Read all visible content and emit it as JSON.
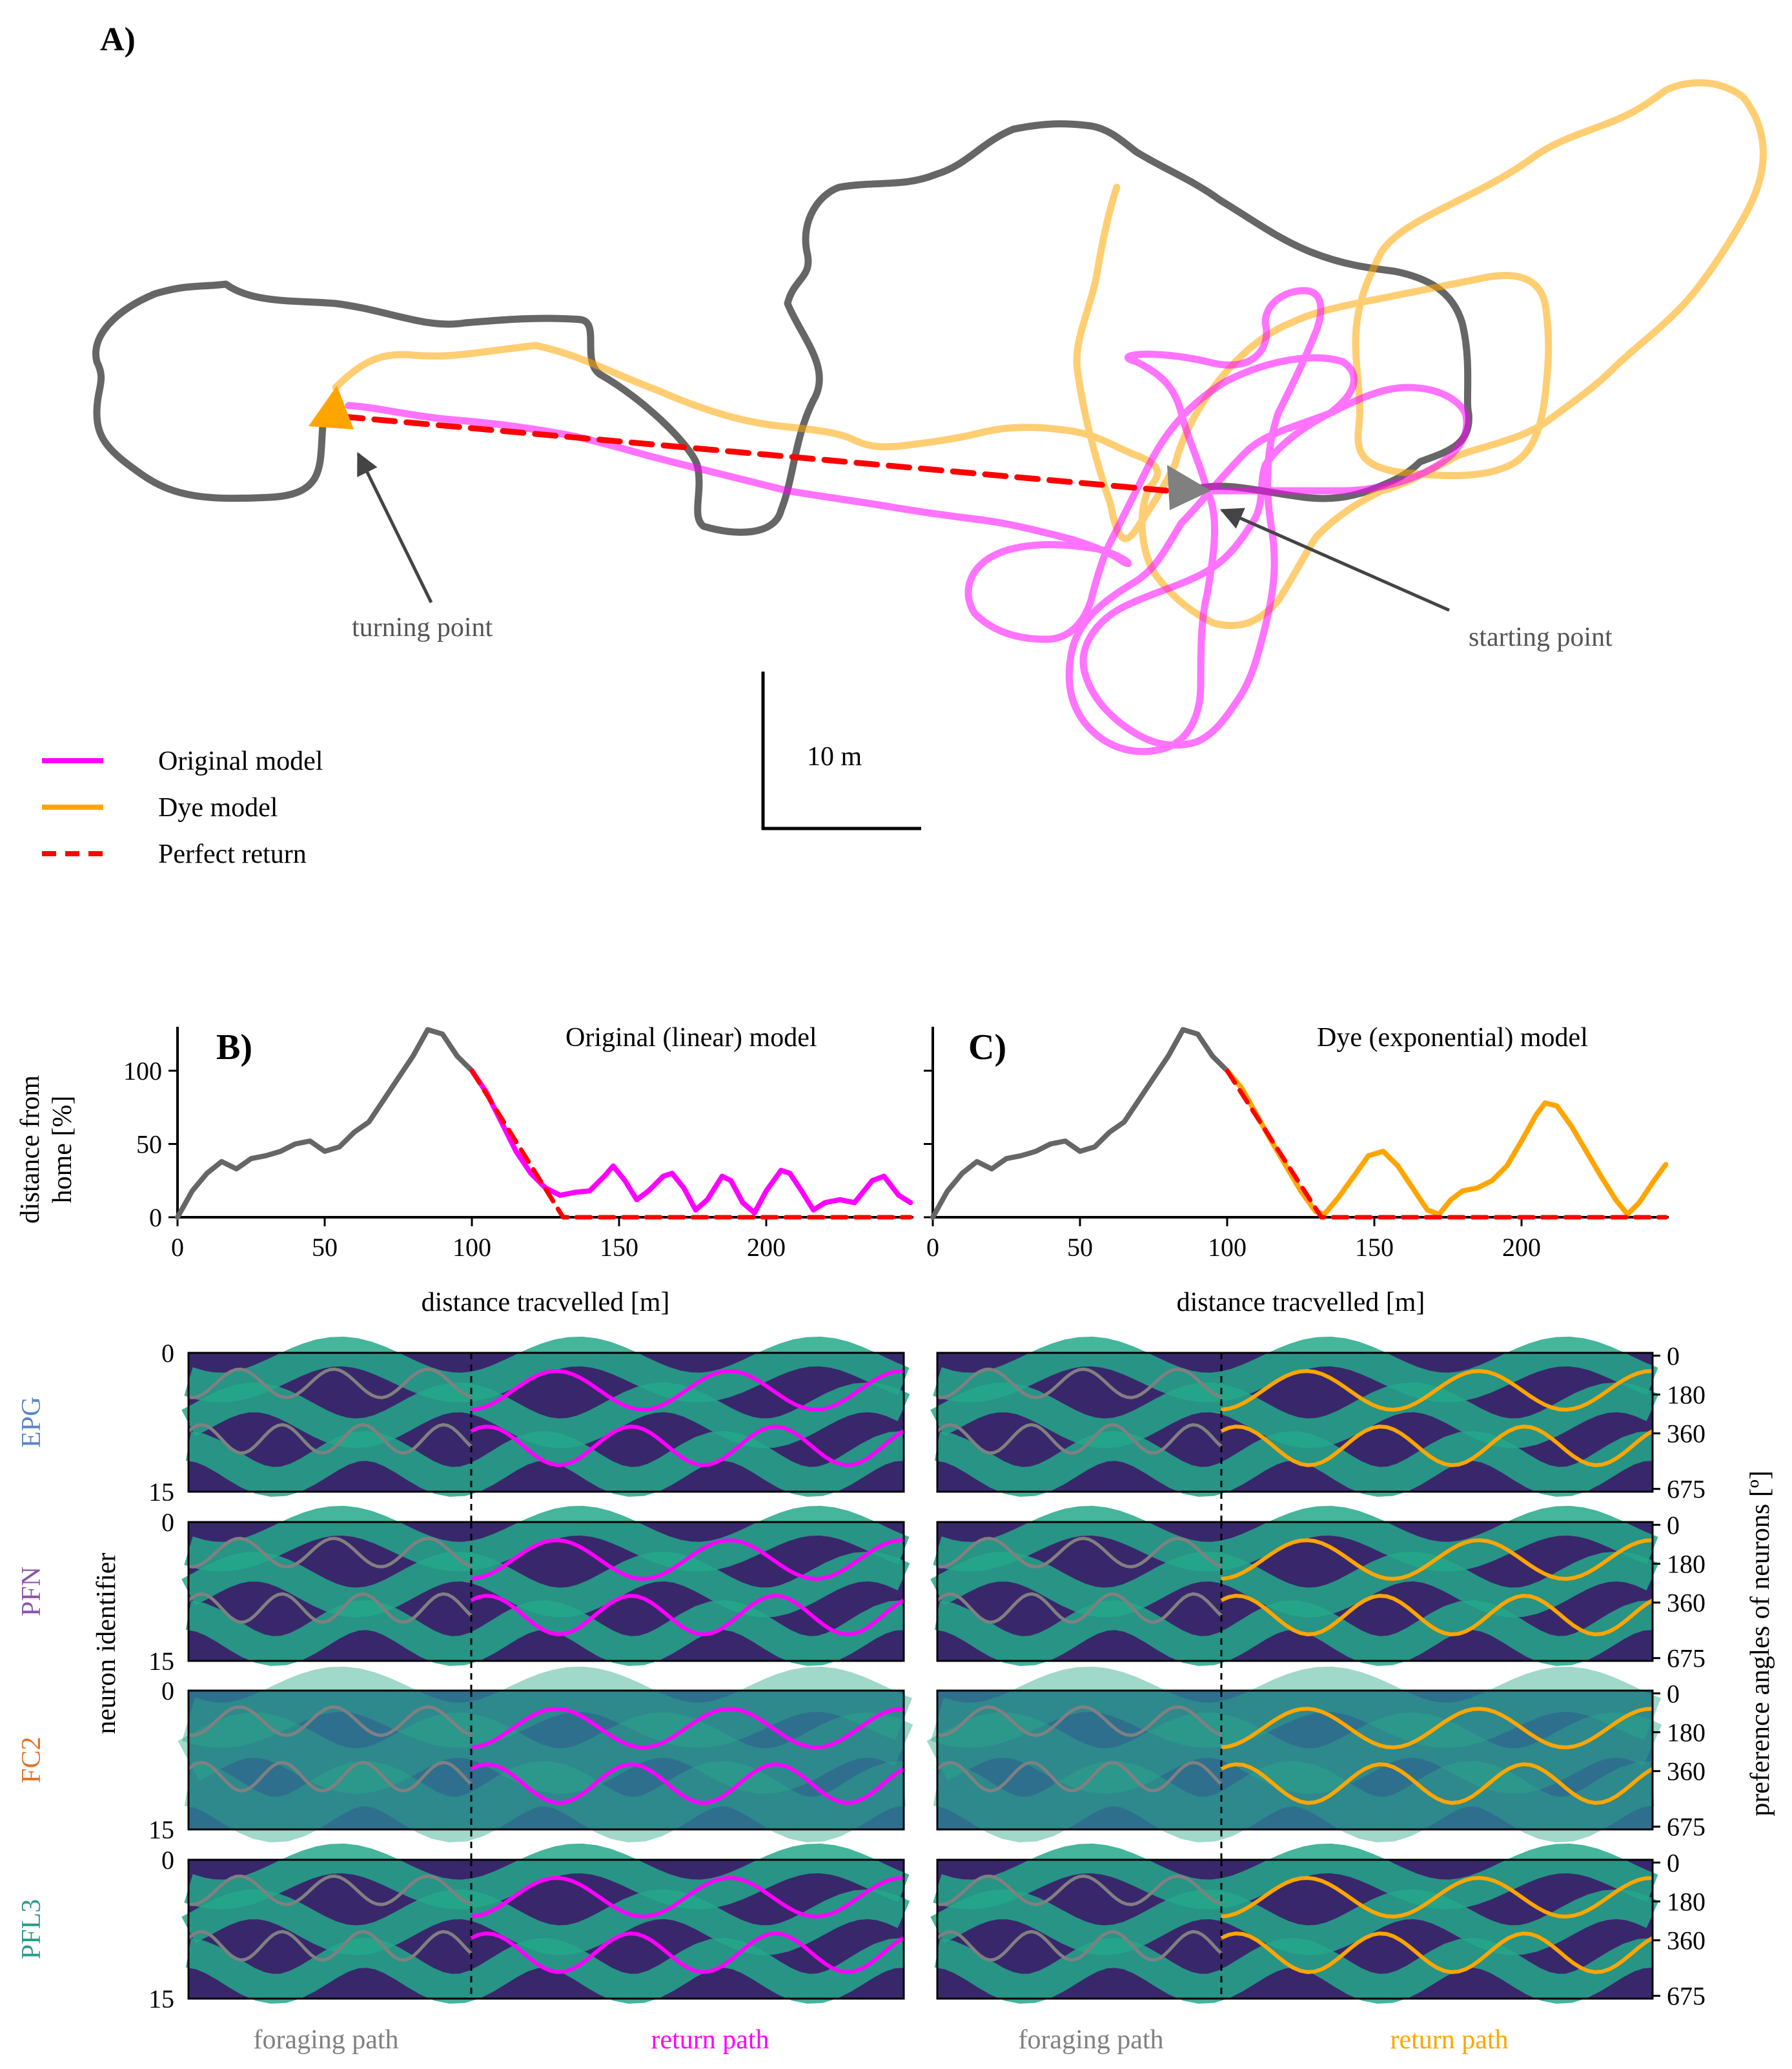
{
  "panels": {
    "a_label": "A)",
    "b_label": "B)",
    "c_label": "C)"
  },
  "trajectory": {
    "scale_label": "10 m",
    "turning_label": "turning point",
    "starting_label": "starting point",
    "legend": [
      {
        "label": "Original model",
        "color": "#ff00ff",
        "style": "solid"
      },
      {
        "label": "Dye model",
        "color": "#ffa500",
        "style": "solid"
      },
      {
        "label": "Perfect return",
        "color": "#ff0000",
        "style": "dashed"
      }
    ],
    "colors": {
      "foraging": "#666666",
      "original": "#ff00ff",
      "dye": "#ffa500",
      "perfect": "#ff0000"
    }
  },
  "line_panels": {
    "ylabel": "distance from home [%]",
    "xlabel": "distance tracvelled [m]",
    "b_title": "Original (linear) model",
    "c_title": "Dye (exponential) model",
    "x_ticks": [
      "0",
      "50",
      "100",
      "150",
      "200"
    ],
    "y_ticks": [
      "0",
      "50",
      "100"
    ]
  },
  "heatmaps": {
    "rows": [
      "EPG",
      "PFN",
      "FC2",
      "PFL3"
    ],
    "row_colors": [
      "#5b84c8",
      "#8a55a8",
      "#e0742c",
      "#2a9a8a"
    ],
    "left_ticks": [
      "0",
      "15"
    ],
    "right_ticks": [
      "0",
      "180",
      "360",
      "675"
    ],
    "left_axis_label": "neuron identifier",
    "right_axis_label": "preference angles of neurons [º]",
    "foraging_label": "foraging path",
    "return_label": "return path",
    "return_color_b": "#ff00ff",
    "return_color_c": "#ffa500",
    "foraging_color": "#808080"
  },
  "chart_data": [
    {
      "type": "line",
      "title": "Original (linear) model",
      "xlabel": "distance tracvelled [m]",
      "ylabel": "distance from home [%]",
      "xlim": [
        0,
        250
      ],
      "ylim": [
        0,
        130
      ],
      "series": [
        {
          "name": "foraging",
          "color": "#666666",
          "x": [
            0,
            5,
            10,
            15,
            20,
            25,
            30,
            35,
            40,
            45,
            50,
            55,
            60,
            65,
            70,
            75,
            80,
            85,
            90,
            95,
            100
          ],
          "y": [
            0,
            18,
            30,
            38,
            33,
            40,
            42,
            45,
            50,
            52,
            45,
            48,
            58,
            65,
            80,
            95,
            110,
            128,
            125,
            110,
            100
          ]
        },
        {
          "name": "Original model",
          "color": "#ff00ff",
          "x": [
            100,
            105,
            110,
            115,
            120,
            125,
            130,
            135,
            140,
            145,
            148,
            152,
            156,
            160,
            165,
            168,
            172,
            176,
            180,
            185,
            188,
            192,
            196,
            200,
            205,
            208,
            212,
            216,
            220,
            225,
            230,
            236,
            240,
            245,
            249
          ],
          "y": [
            100,
            85,
            65,
            45,
            30,
            20,
            15,
            17,
            18,
            28,
            35,
            25,
            12,
            18,
            28,
            30,
            20,
            5,
            12,
            28,
            25,
            10,
            3,
            18,
            32,
            30,
            18,
            5,
            10,
            12,
            10,
            25,
            28,
            15,
            10
          ]
        },
        {
          "name": "Perfect return",
          "color": "#ff0000",
          "dashed": true,
          "x": [
            100,
            131,
            249
          ],
          "y": [
            100,
            0,
            0
          ]
        }
      ]
    },
    {
      "type": "line",
      "title": "Dye (exponential) model",
      "xlabel": "distance tracvelled [m]",
      "ylabel": "distance from home [%]",
      "xlim": [
        0,
        250
      ],
      "ylim": [
        0,
        130
      ],
      "series": [
        {
          "name": "foraging",
          "color": "#666666",
          "x": [
            0,
            5,
            10,
            15,
            20,
            25,
            30,
            35,
            40,
            45,
            50,
            55,
            60,
            65,
            70,
            75,
            80,
            85,
            90,
            95,
            100
          ],
          "y": [
            0,
            18,
            30,
            38,
            33,
            40,
            42,
            45,
            50,
            52,
            45,
            48,
            58,
            65,
            80,
            95,
            110,
            128,
            125,
            110,
            100
          ]
        },
        {
          "name": "Dye model",
          "color": "#ffa500",
          "x": [
            100,
            105,
            110,
            115,
            120,
            125,
            130,
            133,
            138,
            143,
            148,
            153,
            158,
            163,
            168,
            172,
            176,
            180,
            185,
            190,
            195,
            200,
            205,
            208,
            212,
            217,
            222,
            227,
            232,
            236,
            240,
            245,
            249
          ],
          "y": [
            100,
            88,
            70,
            52,
            35,
            18,
            4,
            2,
            14,
            28,
            42,
            45,
            35,
            20,
            5,
            2,
            12,
            18,
            20,
            25,
            35,
            52,
            70,
            78,
            76,
            62,
            45,
            28,
            12,
            2,
            10,
            25,
            36
          ]
        },
        {
          "name": "Perfect return",
          "color": "#ff0000",
          "dashed": true,
          "x": [
            100,
            132,
            249
          ],
          "y": [
            100,
            0,
            0
          ]
        }
      ]
    }
  ]
}
